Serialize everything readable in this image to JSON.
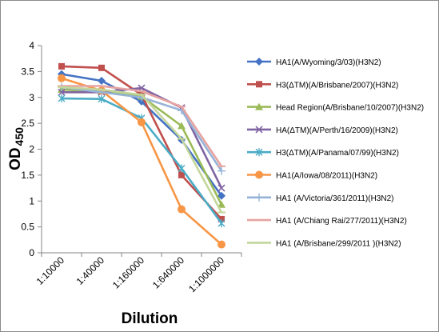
{
  "chart_data": {
    "type": "line",
    "xlabel": "Dilution",
    "ylabel_main": "OD",
    "ylabel_sub": "450",
    "ylim": [
      0,
      4
    ],
    "yticks": [
      "0",
      "0.5",
      "1",
      "1.5",
      "2",
      "2.5",
      "3",
      "3.5",
      "4"
    ],
    "categories": [
      "1:10000",
      "1:40000",
      "1:160000",
      "1:640000",
      "1:1000000"
    ],
    "grid": false,
    "legend_position": "right",
    "series": [
      {
        "name": "HA1(A/Wyoming/3/03)(H3N2)",
        "color": "#4472C4",
        "marker": "diamond",
        "values": [
          3.45,
          3.32,
          2.92,
          2.18,
          1.1
        ]
      },
      {
        "name": "H3(ΔTM)(A/Brisbane/2007)(H3N2)",
        "color": "#C0504D",
        "marker": "square",
        "values": [
          3.6,
          3.57,
          3.05,
          1.5,
          0.65
        ]
      },
      {
        "name": "Head Region(A/Brisbane/10/2007)(H3N2)",
        "color": "#9BBB59",
        "marker": "triangle",
        "values": [
          3.15,
          3.12,
          3.02,
          2.45,
          0.93
        ]
      },
      {
        "name": "HA(ΔTM)(A/Perth/16/2009)(H3N2)",
        "color": "#8064A2",
        "marker": "x",
        "values": [
          3.1,
          3.1,
          3.18,
          2.8,
          1.25
        ]
      },
      {
        "name": "H3(ΔTM)(A/Panama/07/99)(H3N2)",
        "color": "#4BACC6",
        "marker": "star",
        "values": [
          2.98,
          2.97,
          2.6,
          1.63,
          0.57
        ]
      },
      {
        "name": "HA1(A/Iowa/08/2011)(H3N2)",
        "color": "#F79646",
        "marker": "circle",
        "values": [
          3.37,
          3.13,
          2.52,
          0.84,
          0.16
        ]
      },
      {
        "name": "HA1 (A/Victoria/361/2011)(H3N2)",
        "color": "#95B3D7",
        "marker": "plus",
        "values": [
          3.2,
          3.1,
          3.0,
          2.75,
          1.58
        ]
      },
      {
        "name": "HA1 (A/Chiang Rai/277/2011)(H3N2)",
        "color": "#E6A4A2",
        "marker": "dash",
        "values": [
          3.22,
          3.22,
          3.12,
          2.82,
          1.67
        ]
      },
      {
        "name": "HA1 (A/Brisbane/299/2011 )(H3N2)",
        "color": "#C3D69B",
        "marker": "dash",
        "values": [
          3.2,
          3.15,
          3.05,
          2.2,
          0.78
        ]
      }
    ]
  }
}
